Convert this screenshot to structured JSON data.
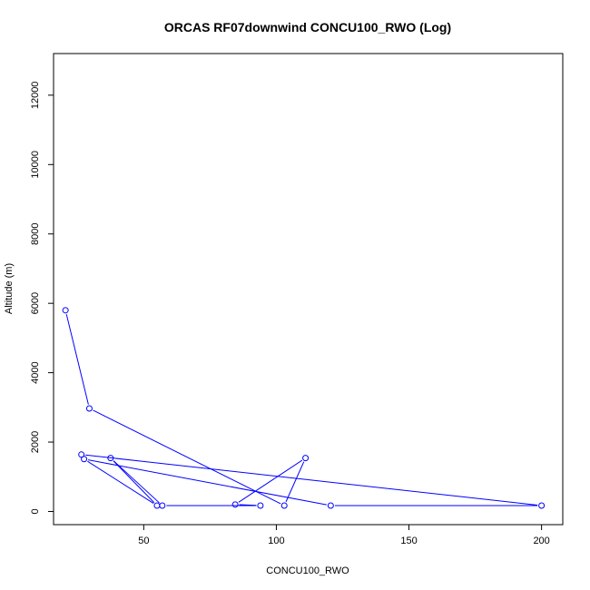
{
  "chart_data": {
    "type": "line",
    "title": "ORCAS RF07downwind CONCU100_RWO (Log)",
    "xlabel": "CONCU100_RWO",
    "ylabel": "Altitude (m)",
    "xlim": [
      16,
      208
    ],
    "ylim": [
      -380,
      13200
    ],
    "x_ticks": [
      50,
      100,
      150,
      200
    ],
    "y_ticks": [
      0,
      2000,
      4000,
      6000,
      8000,
      10000,
      12000
    ],
    "grid": false,
    "line_color": "#0000ff",
    "series": [
      {
        "x": [
          20.5,
          29.5,
          103,
          111,
          84.5,
          94,
          57,
          37.5,
          55,
          27.5,
          120.5,
          200,
          26.5
        ],
        "y": [
          5800,
          2970,
          170,
          1540,
          200,
          170,
          170,
          1540,
          170,
          1510,
          170,
          170,
          1640
        ]
      }
    ]
  }
}
